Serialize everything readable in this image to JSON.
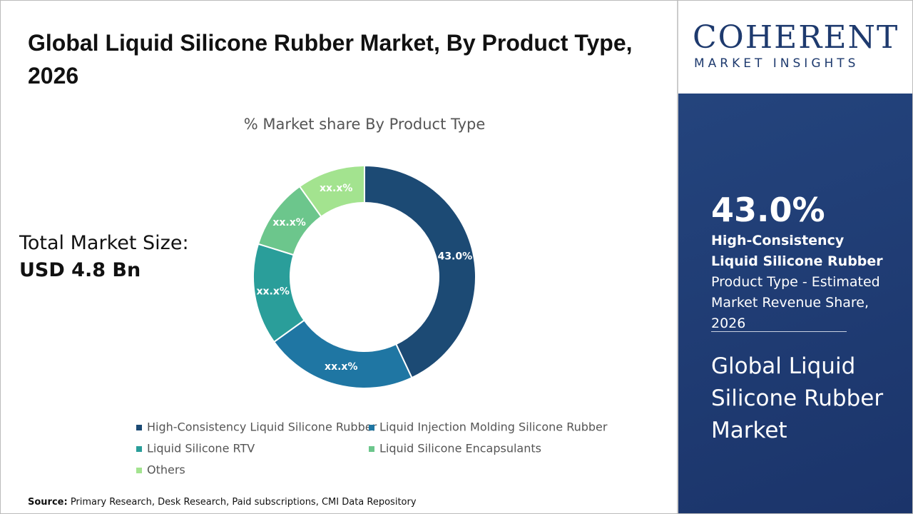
{
  "chart_data": {
    "type": "pie",
    "donut": true,
    "title": "Global Liquid Silicone Rubber Market, By Product Type, 2026",
    "subtitle": "% Market share By Product Type",
    "categories": [
      "High-Consistency Liquid Silicone Rubber",
      "Liquid Injection Molding Silicone Rubber",
      "Liquid Silicone RTV",
      "Liquid Silicone Encapsulants",
      "Others"
    ],
    "values": [
      43.0,
      22.1,
      14.7,
      10.3,
      9.9
    ],
    "value_labels": [
      "43.0%",
      "xx.x%",
      "xx.x%",
      "xx.x%",
      "xx.x%"
    ],
    "colors": [
      "#1c4a74",
      "#1f76a3",
      "#2a9e9a",
      "#6cc68c",
      "#a3e38f"
    ]
  },
  "market_size": {
    "label": "Total Market Size:",
    "value": "USD 4.8 Bn"
  },
  "highlight": {
    "value": "43.0%",
    "bold": "High-Consistency Liquid Silicone Rubber",
    "rest": " Product Type - Estimated Market Revenue Share, 2026",
    "market": "Global Liquid Silicone Rubber Market"
  },
  "logo": {
    "name": "COHERENT",
    "tagline": "MARKET INSIGHTS"
  },
  "source": {
    "label": "Source:",
    "text": " Primary Research, Desk Research, Paid subscriptions, CMI Data Repository"
  }
}
